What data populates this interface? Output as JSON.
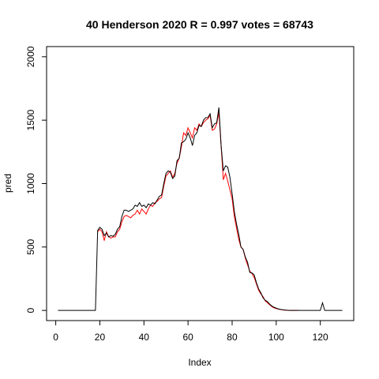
{
  "chart_data": {
    "type": "line",
    "title": "40 Henderson 2020 R = 0.997 votes = 68743",
    "xlabel": "Index",
    "ylabel": "pred",
    "x": [
      1,
      2,
      3,
      4,
      5,
      6,
      7,
      8,
      9,
      10,
      11,
      12,
      13,
      14,
      15,
      16,
      17,
      18,
      19,
      20,
      21,
      22,
      23,
      24,
      25,
      26,
      27,
      28,
      29,
      30,
      31,
      32,
      33,
      34,
      35,
      36,
      37,
      38,
      39,
      40,
      41,
      42,
      43,
      44,
      45,
      46,
      47,
      48,
      49,
      50,
      51,
      52,
      53,
      54,
      55,
      56,
      57,
      58,
      59,
      60,
      61,
      62,
      63,
      64,
      65,
      66,
      67,
      68,
      69,
      70,
      71,
      72,
      73,
      74,
      75,
      76,
      77,
      78,
      79,
      80,
      81,
      82,
      83,
      84,
      85,
      86,
      87,
      88,
      89,
      90,
      91,
      92,
      93,
      94,
      95,
      96,
      97,
      98,
      99,
      100,
      101,
      102,
      103,
      104,
      105,
      106,
      107,
      108,
      109,
      110,
      111,
      112,
      113,
      114,
      115,
      116,
      117,
      118,
      119,
      120,
      121,
      122,
      123,
      124,
      125,
      126,
      127,
      128,
      129,
      130
    ],
    "series": [
      {
        "name": "pred",
        "color": "#ff0000",
        "values": [
          null,
          null,
          null,
          null,
          null,
          null,
          null,
          null,
          null,
          null,
          null,
          null,
          null,
          null,
          null,
          null,
          null,
          null,
          620,
          640,
          620,
          550,
          620,
          580,
          570,
          580,
          580,
          620,
          640,
          700,
          740,
          750,
          740,
          730,
          750,
          760,
          790,
          760,
          800,
          780,
          760,
          800,
          830,
          820,
          850,
          860,
          880,
          890,
          980,
          1060,
          1080,
          1100,
          1050,
          1080,
          1160,
          1200,
          1290,
          1400,
          1380,
          1440,
          1400,
          1360,
          1440,
          1420,
          1470,
          1450,
          1480,
          1500,
          1510,
          1540,
          1420,
          1430,
          1470,
          1560,
          1300,
          1030,
          1080,
          1020,
          950,
          880,
          740,
          650,
          560,
          500,
          480,
          410,
          360,
          310,
          290,
          260,
          210,
          160,
          130,
          110,
          75,
          60,
          45,
          30,
          20,
          15,
          10,
          6,
          4,
          2,
          1,
          0,
          0,
          0,
          0,
          0,
          null,
          null,
          null,
          null,
          null,
          null,
          null,
          null,
          null,
          null,
          null,
          null,
          null,
          null,
          null,
          null,
          null,
          null,
          null,
          null
        ]
      },
      {
        "name": "votes",
        "color": "#000000",
        "values": [
          0,
          0,
          0,
          0,
          0,
          0,
          0,
          0,
          0,
          0,
          0,
          0,
          0,
          0,
          0,
          0,
          0,
          0,
          630,
          655,
          640,
          590,
          610,
          580,
          590,
          585,
          600,
          640,
          660,
          740,
          790,
          790,
          780,
          790,
          800,
          830,
          820,
          850,
          820,
          830,
          810,
          840,
          830,
          850,
          840,
          870,
          900,
          910,
          1000,
          1080,
          1100,
          1090,
          1040,
          1060,
          1180,
          1200,
          1320,
          1330,
          1350,
          1400,
          1360,
          1300,
          1380,
          1400,
          1460,
          1450,
          1500,
          1520,
          1520,
          1550,
          1440,
          1470,
          1480,
          1600,
          1300,
          1100,
          1140,
          1130,
          1050,
          920,
          780,
          680,
          600,
          500,
          480,
          420,
          380,
          300,
          295,
          280,
          220,
          170,
          140,
          100,
          80,
          70,
          50,
          35,
          25,
          18,
          12,
          8,
          5,
          3,
          2,
          0,
          0,
          0,
          0,
          0,
          0,
          0,
          0,
          0,
          0,
          0,
          0,
          0,
          0,
          0,
          60,
          0,
          0,
          0,
          0,
          0,
          0,
          0,
          0,
          0
        ]
      }
    ],
    "xlim": [
      -4.16,
      135.16
    ],
    "xticks": [
      0,
      20,
      40,
      60,
      80,
      100,
      120
    ],
    "ylim": [
      -80,
      2080
    ],
    "yticks": [
      0,
      500,
      1000,
      1500,
      2000
    ]
  }
}
